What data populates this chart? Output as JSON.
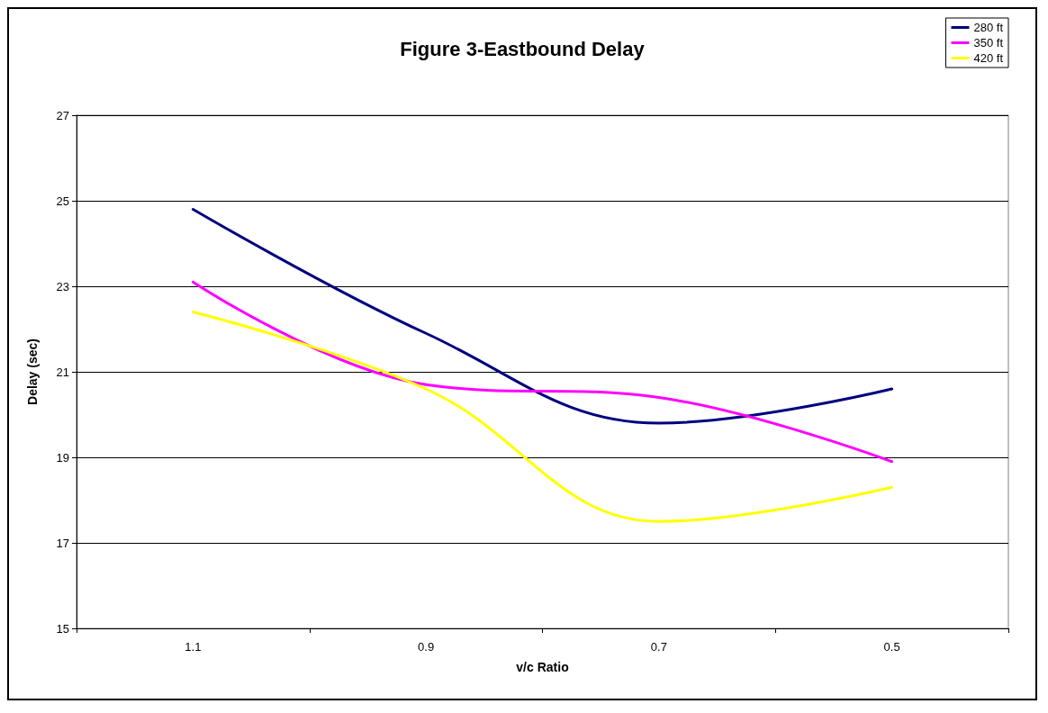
{
  "chart_data": {
    "type": "line",
    "title": "Figure 3-Eastbound Delay",
    "xlabel": "v/c Ratio",
    "ylabel": "Delay (sec)",
    "categories": [
      "1.1",
      "0.9",
      "0.7",
      "0.5"
    ],
    "series": [
      {
        "name": "280 ft",
        "color": "#000080",
        "values": [
          24.8,
          21.9,
          19.8,
          20.6
        ]
      },
      {
        "name": "350 ft",
        "color": "#ff00ff",
        "values": [
          23.1,
          20.7,
          20.4,
          18.9
        ]
      },
      {
        "name": "420 ft",
        "color": "#ffff00",
        "values": [
          22.4,
          20.6,
          17.5,
          18.3
        ]
      }
    ],
    "ylim": [
      15,
      27
    ],
    "yticks": [
      15,
      17,
      19,
      21,
      23,
      25,
      27
    ],
    "grid": "y",
    "legend": "top right",
    "marker": "none",
    "line_style": "solid"
  }
}
